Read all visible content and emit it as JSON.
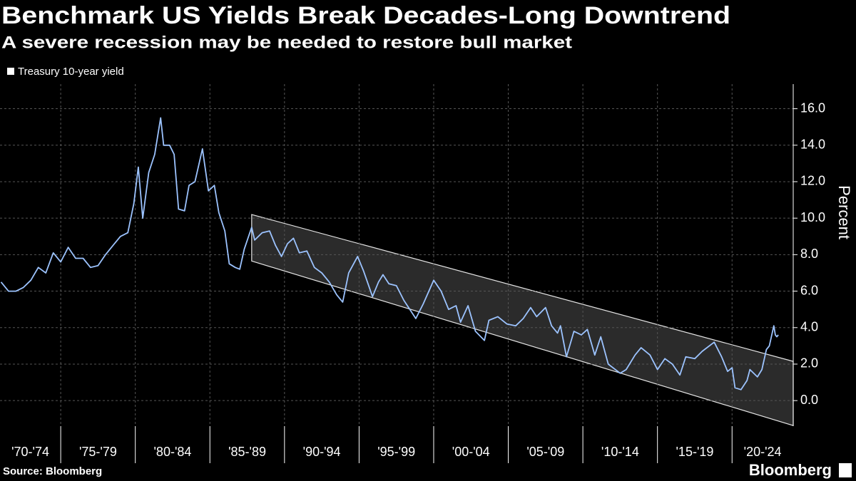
{
  "chart_data": {
    "type": "line",
    "title": "Benchmark US Yields Break Decades-Long Downtrend",
    "subtitle": "A severe recession may be needed to restore bull market",
    "y_label": "Percent",
    "source": "Source: Bloomberg",
    "brand": "Bloomberg",
    "xlim": [
      1970.93,
      2024.1
    ],
    "ylim": [
      -1.4,
      17.35
    ],
    "yticks": [
      {
        "value": 0,
        "label": "0.0"
      },
      {
        "value": 2,
        "label": "2.0"
      },
      {
        "value": 4,
        "label": "4.0"
      },
      {
        "value": 6,
        "label": "6.0"
      },
      {
        "value": 8,
        "label": "8.0"
      },
      {
        "value": 10,
        "label": "10.0"
      },
      {
        "value": 12,
        "label": "12.0"
      },
      {
        "value": 14,
        "label": "14.0"
      },
      {
        "value": 16,
        "label": "16.0"
      }
    ],
    "x_bands": [
      {
        "label": "'70-'74",
        "start": 1970,
        "end": 1975
      },
      {
        "label": "'75-'79",
        "start": 1975,
        "end": 1980
      },
      {
        "label": "'80-'84",
        "start": 1980,
        "end": 1985
      },
      {
        "label": "'85-'89",
        "start": 1985,
        "end": 1990
      },
      {
        "label": "'90-'94",
        "start": 1990,
        "end": 1995
      },
      {
        "label": "'95-'99",
        "start": 1995,
        "end": 2000
      },
      {
        "label": "'00-'04",
        "start": 2000,
        "end": 2005
      },
      {
        "label": "'05-'09",
        "start": 2005,
        "end": 2010
      },
      {
        "label": "'10-'14",
        "start": 2010,
        "end": 2015
      },
      {
        "label": "'15-'19",
        "start": 2015,
        "end": 2020
      },
      {
        "label": "'20-'24",
        "start": 2020,
        "end": 2025
      }
    ],
    "grid": true,
    "channel": {
      "x": [
        1987.8,
        2024.1
      ],
      "upper": [
        10.2,
        2.15
      ],
      "lower": [
        7.65,
        -1.37
      ]
    },
    "x": [
      1971.0,
      1971.5,
      1972.0,
      1972.5,
      1973.0,
      1973.5,
      1974.0,
      1974.5,
      1975.0,
      1975.5,
      1976.0,
      1976.5,
      1977.0,
      1977.5,
      1978.0,
      1978.5,
      1979.0,
      1979.5,
      1979.9,
      1980.2,
      1980.5,
      1980.9,
      1981.3,
      1981.7,
      1981.9,
      1982.3,
      1982.6,
      1982.9,
      1983.3,
      1983.6,
      1984.0,
      1984.5,
      1984.9,
      1985.3,
      1985.6,
      1986.0,
      1986.3,
      1986.7,
      1987.0,
      1987.3,
      1987.8,
      1988.0,
      1988.5,
      1989.0,
      1989.4,
      1989.8,
      1990.2,
      1990.6,
      1991.0,
      1991.5,
      1992.0,
      1992.5,
      1993.0,
      1993.5,
      1993.9,
      1994.3,
      1994.9,
      1995.3,
      1995.9,
      1996.3,
      1996.6,
      1997.0,
      1997.5,
      1998.0,
      1998.8,
      1999.3,
      2000.0,
      2000.5,
      2001.0,
      2001.5,
      2001.8,
      2002.3,
      2002.8,
      2003.4,
      2003.7,
      2004.3,
      2004.9,
      2005.5,
      2006.0,
      2006.5,
      2006.9,
      2007.5,
      2007.9,
      2008.3,
      2008.5,
      2008.9,
      2009.4,
      2009.9,
      2010.3,
      2010.8,
      2011.2,
      2011.7,
      2012.5,
      2012.9,
      2013.5,
      2013.9,
      2014.5,
      2015.0,
      2015.5,
      2016.0,
      2016.5,
      2016.9,
      2017.5,
      2018.0,
      2018.8,
      2019.3,
      2019.7,
      2020.0,
      2020.2,
      2020.6,
      2021.0,
      2021.2,
      2021.7,
      2022.0,
      2022.3,
      2022.5,
      2022.8,
      2022.9,
      2023.0,
      2023.1
    ],
    "series": [
      {
        "name": "Treasury 10-year yield",
        "color": "#9cc3ff",
        "values": [
          6.5,
          6.0,
          6.0,
          6.2,
          6.6,
          7.3,
          7.0,
          8.1,
          7.6,
          8.4,
          7.8,
          7.8,
          7.3,
          7.4,
          8.0,
          8.5,
          9.0,
          9.2,
          10.8,
          12.8,
          10.0,
          12.5,
          13.5,
          15.5,
          14.0,
          14.0,
          13.5,
          10.5,
          10.4,
          11.8,
          12.0,
          13.8,
          11.5,
          11.8,
          10.3,
          9.3,
          7.5,
          7.3,
          7.2,
          8.3,
          9.5,
          8.8,
          9.2,
          9.3,
          8.5,
          7.9,
          8.6,
          8.9,
          8.1,
          8.2,
          7.3,
          7.0,
          6.5,
          5.8,
          5.4,
          7.0,
          7.9,
          7.1,
          5.7,
          6.5,
          6.9,
          6.4,
          6.3,
          5.5,
          4.5,
          5.3,
          6.6,
          6.0,
          5.0,
          5.2,
          4.3,
          5.2,
          3.8,
          3.3,
          4.4,
          4.6,
          4.2,
          4.1,
          4.5,
          5.1,
          4.6,
          5.1,
          4.1,
          3.7,
          4.1,
          2.4,
          3.8,
          3.6,
          3.9,
          2.5,
          3.5,
          2.0,
          1.5,
          1.7,
          2.5,
          2.9,
          2.5,
          1.7,
          2.3,
          2.0,
          1.4,
          2.4,
          2.3,
          2.7,
          3.2,
          2.4,
          1.6,
          1.8,
          0.7,
          0.6,
          1.1,
          1.7,
          1.3,
          1.7,
          2.8,
          3.0,
          4.1,
          3.6,
          3.5,
          3.6
        ]
      }
    ]
  }
}
